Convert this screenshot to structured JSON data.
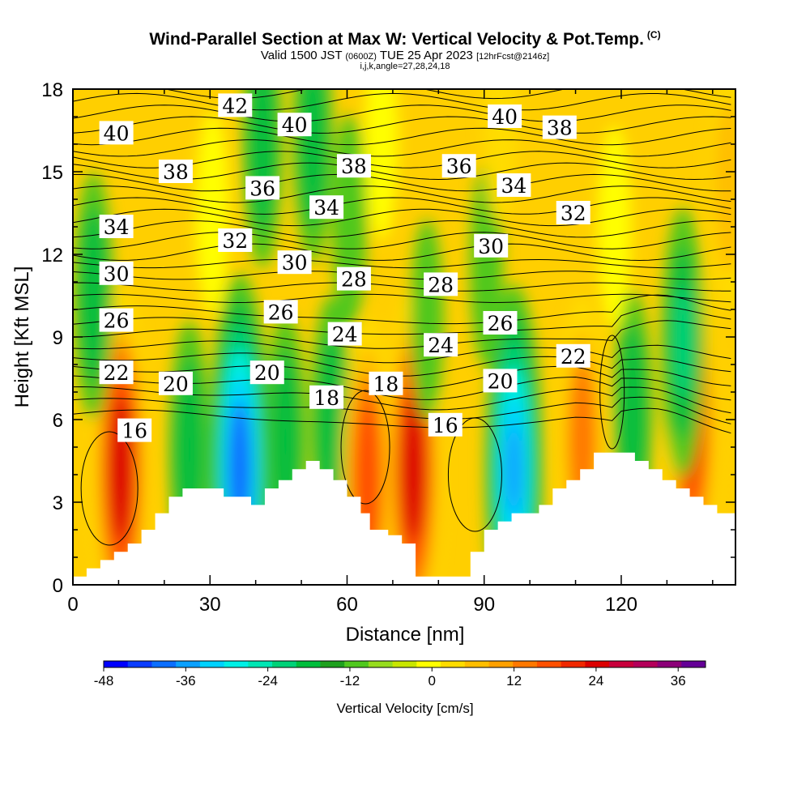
{
  "chart_data": {
    "type": "contour",
    "title": "Wind-Parallel Section at Max W: Vertical Velocity & Pot.Temp.",
    "title_mark": "(C)",
    "subtitle_valid": "Valid 1500 JST",
    "subtitle_utc": "(0600Z)",
    "subtitle_date": "TUE 25 Apr 2023",
    "subtitle_fcst": "[12hrFcst@2146z]",
    "subtitle_indices": "i,j,k,angle=27,28,24,18",
    "xlabel": "Distance [nm]",
    "ylabel": "Height [Kft MSL]",
    "xlim": [
      0,
      145
    ],
    "ylim": [
      0,
      18
    ],
    "x_ticks": [
      "0",
      "30",
      "60",
      "90",
      "120"
    ],
    "y_ticks": [
      "0",
      "3",
      "6",
      "9",
      "12",
      "15",
      "18"
    ],
    "colorbar": {
      "label": "Vertical Velocity [cm/s]",
      "min": -48,
      "max": 40,
      "step": 4,
      "tick_labels": [
        "-48",
        "-36",
        "-24",
        "-12",
        "0",
        "12",
        "24",
        "36"
      ],
      "colors": [
        "#0000ff",
        "#0a3cff",
        "#0a6eff",
        "#0aa0ff",
        "#00d2ff",
        "#00f0e6",
        "#00e6b4",
        "#00d278",
        "#00be3c",
        "#1ea01e",
        "#50c81e",
        "#96dc1e",
        "#c8e600",
        "#ffff00",
        "#ffdc00",
        "#ffbe00",
        "#ffa000",
        "#ff7800",
        "#ff5000",
        "#f02800",
        "#dc0000",
        "#c8003c",
        "#b4005a",
        "#8c0078",
        "#640096"
      ]
    },
    "theta_contour_labels": [
      {
        "text": "42",
        "x": 35.5,
        "y": 17.4
      },
      {
        "text": "40",
        "x": 9.5,
        "y": 16.4
      },
      {
        "text": "40",
        "x": 48.5,
        "y": 16.7
      },
      {
        "text": "40",
        "x": 94.5,
        "y": 17.0
      },
      {
        "text": "38",
        "x": 22.5,
        "y": 15.0
      },
      {
        "text": "38",
        "x": 61.5,
        "y": 15.2
      },
      {
        "text": "38",
        "x": 106.5,
        "y": 16.6
      },
      {
        "text": "36",
        "x": 41.5,
        "y": 14.4
      },
      {
        "text": "36",
        "x": 84.5,
        "y": 15.2
      },
      {
        "text": "34",
        "x": 9.5,
        "y": 13.0
      },
      {
        "text": "34",
        "x": 55.5,
        "y": 13.7
      },
      {
        "text": "34",
        "x": 96.5,
        "y": 14.5
      },
      {
        "text": "32",
        "x": 35.5,
        "y": 12.5
      },
      {
        "text": "32",
        "x": 109.5,
        "y": 13.5
      },
      {
        "text": "30",
        "x": 9.5,
        "y": 11.3
      },
      {
        "text": "30",
        "x": 48.5,
        "y": 11.7
      },
      {
        "text": "30",
        "x": 91.5,
        "y": 12.3
      },
      {
        "text": "28",
        "x": 61.5,
        "y": 11.1
      },
      {
        "text": "28",
        "x": 80.5,
        "y": 10.9
      },
      {
        "text": "26",
        "x": 9.5,
        "y": 9.6
      },
      {
        "text": "26",
        "x": 45.5,
        "y": 9.9
      },
      {
        "text": "26",
        "x": 93.5,
        "y": 9.5
      },
      {
        "text": "24",
        "x": 59.5,
        "y": 9.1
      },
      {
        "text": "24",
        "x": 80.5,
        "y": 8.7
      },
      {
        "text": "22",
        "x": 9.5,
        "y": 7.7
      },
      {
        "text": "22",
        "x": 109.5,
        "y": 8.3
      },
      {
        "text": "20",
        "x": 22.5,
        "y": 7.3
      },
      {
        "text": "20",
        "x": 42.5,
        "y": 7.7
      },
      {
        "text": "20",
        "x": 93.5,
        "y": 7.4
      },
      {
        "text": "18",
        "x": 55.5,
        "y": 6.8
      },
      {
        "text": "18",
        "x": 68.5,
        "y": 7.3
      },
      {
        "text": "16",
        "x": 13.5,
        "y": 5.6
      },
      {
        "text": "16",
        "x": 81.5,
        "y": 5.8
      }
    ],
    "terrain_height_kft": [
      {
        "x": 0,
        "h": 0.3
      },
      {
        "x": 3,
        "h": 0.6
      },
      {
        "x": 6,
        "h": 0.9
      },
      {
        "x": 9,
        "h": 1.2
      },
      {
        "x": 12,
        "h": 1.5
      },
      {
        "x": 15,
        "h": 2.0
      },
      {
        "x": 18,
        "h": 2.6
      },
      {
        "x": 21,
        "h": 3.2
      },
      {
        "x": 24,
        "h": 3.5
      },
      {
        "x": 27,
        "h": 3.5
      },
      {
        "x": 30,
        "h": 3.5
      },
      {
        "x": 33,
        "h": 3.2
      },
      {
        "x": 36,
        "h": 3.2
      },
      {
        "x": 39,
        "h": 2.9
      },
      {
        "x": 42,
        "h": 3.5
      },
      {
        "x": 45,
        "h": 3.8
      },
      {
        "x": 48,
        "h": 4.2
      },
      {
        "x": 51,
        "h": 4.5
      },
      {
        "x": 54,
        "h": 4.2
      },
      {
        "x": 57,
        "h": 3.8
      },
      {
        "x": 60,
        "h": 3.2
      },
      {
        "x": 63,
        "h": 2.6
      },
      {
        "x": 65,
        "h": 2.0
      },
      {
        "x": 69,
        "h": 1.8
      },
      {
        "x": 72,
        "h": 1.5
      },
      {
        "x": 75,
        "h": 0.3
      },
      {
        "x": 78,
        "h": 0.3
      },
      {
        "x": 81,
        "h": 0.3
      },
      {
        "x": 84,
        "h": 0.3
      },
      {
        "x": 87,
        "h": 1.2
      },
      {
        "x": 90,
        "h": 2.0
      },
      {
        "x": 93,
        "h": 2.3
      },
      {
        "x": 96,
        "h": 2.6
      },
      {
        "x": 99,
        "h": 2.6
      },
      {
        "x": 102,
        "h": 2.9
      },
      {
        "x": 105,
        "h": 3.5
      },
      {
        "x": 108,
        "h": 3.8
      },
      {
        "x": 111,
        "h": 4.2
      },
      {
        "x": 114,
        "h": 4.8
      },
      {
        "x": 117,
        "h": 4.8
      },
      {
        "x": 120,
        "h": 4.8
      },
      {
        "x": 123,
        "h": 4.5
      },
      {
        "x": 126,
        "h": 4.2
      },
      {
        "x": 129,
        "h": 3.8
      },
      {
        "x": 132,
        "h": 3.5
      },
      {
        "x": 135,
        "h": 3.2
      },
      {
        "x": 138,
        "h": 2.9
      },
      {
        "x": 141,
        "h": 2.6
      },
      {
        "x": 145,
        "h": 2.6
      }
    ],
    "vertical_velocity_cores": [
      {
        "x": 10.5,
        "y": 4.2,
        "w": 34
      },
      {
        "x": 36.5,
        "y": 4.2,
        "w": -40
      },
      {
        "x": 25.5,
        "y": 4.9,
        "w": -16
      },
      {
        "x": 46.5,
        "y": 5.2,
        "w": -16
      },
      {
        "x": 56.5,
        "y": 5.8,
        "w": -16
      },
      {
        "x": 64.5,
        "y": 3.9,
        "w": 27
      },
      {
        "x": 74.5,
        "y": 4.2,
        "w": 34
      },
      {
        "x": 96.5,
        "y": 4.2,
        "w": -36
      },
      {
        "x": 111.5,
        "y": 5.2,
        "w": 22
      },
      {
        "x": 122.5,
        "y": 6.2,
        "w": -14
      },
      {
        "x": 135.5,
        "y": 5.8,
        "w": 30
      },
      {
        "x": 133.5,
        "y": 8.8,
        "w": -18
      },
      {
        "x": 4.5,
        "y": 10.5,
        "w": -14
      },
      {
        "x": 41.5,
        "y": 16.0,
        "w": -14
      },
      {
        "x": 52.5,
        "y": 16.2,
        "w": -14
      },
      {
        "x": 60.5,
        "y": 13.2,
        "w": -8
      },
      {
        "x": 90.5,
        "y": 11.6,
        "w": -6
      },
      {
        "x": 77.5,
        "y": 9.6,
        "w": -6
      },
      {
        "x": 143.5,
        "y": 14.5,
        "w": 14
      },
      {
        "x": 93.5,
        "y": 17.0,
        "w": 8
      },
      {
        "x": 67.5,
        "y": 16.2,
        "w": 6
      },
      {
        "x": 30.5,
        "y": 13.5,
        "w": 6
      },
      {
        "x": 118.5,
        "y": 13.0,
        "w": 6
      }
    ]
  }
}
